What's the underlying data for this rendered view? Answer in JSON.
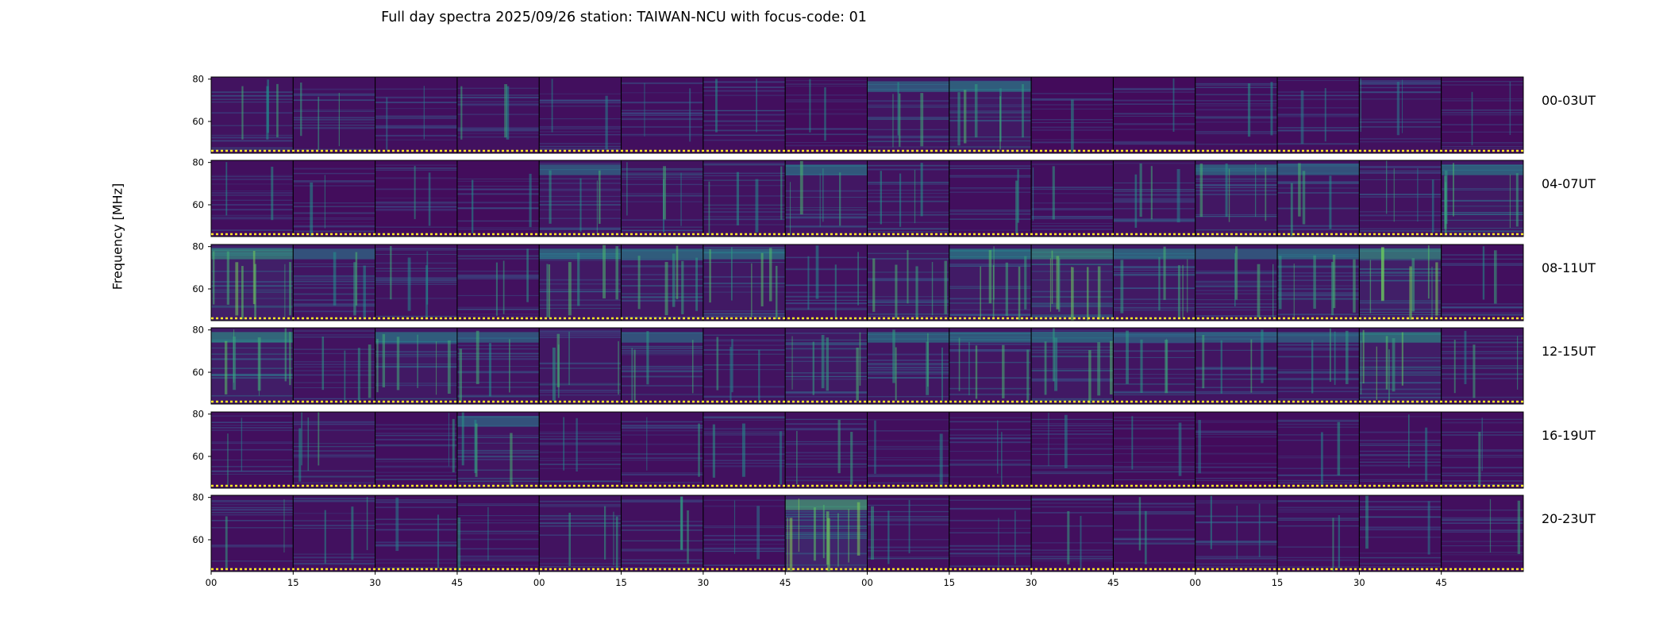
{
  "title": "Full day spectra 2025/09/26 station: TAIWAN-NCU with focus-code: 01",
  "colors": {
    "background": "#440154",
    "mid": "#3b528b",
    "teal": "#21918c",
    "green": "#5ec962",
    "yellow": "#fde725"
  },
  "chart_data": {
    "type": "heatmap",
    "title": "Full day spectra 2025/09/26 station: TAIWAN-NCU with focus-code: 01",
    "ylabel": "Frequency [MHz]",
    "xlabel": "",
    "ylim": [
      45,
      81
    ],
    "yticks": [
      "80",
      "60"
    ],
    "xticks": [
      "00",
      "15",
      "30",
      "45",
      "00",
      "15",
      "30",
      "45",
      "00",
      "15",
      "30",
      "45",
      "00",
      "15",
      "30",
      "45"
    ],
    "colormap": "viridis",
    "panels_per_row": 16,
    "panel_minutes": 15,
    "rows": [
      {
        "label": "00-03UT",
        "intensity": [
          0.3,
          0.25,
          0.2,
          0.25,
          0.2,
          0.2,
          0.2,
          0.15,
          0.35,
          0.45,
          0.1,
          0.1,
          0.2,
          0.2,
          0.25,
          0.15
        ]
      },
      {
        "label": "04-07UT",
        "intensity": [
          0.2,
          0.15,
          0.15,
          0.15,
          0.35,
          0.3,
          0.3,
          0.4,
          0.3,
          0.2,
          0.2,
          0.3,
          0.4,
          0.35,
          0.3,
          0.45
        ]
      },
      {
        "label": "08-11UT",
        "intensity": [
          0.6,
          0.35,
          0.3,
          0.25,
          0.45,
          0.45,
          0.45,
          0.3,
          0.45,
          0.5,
          0.6,
          0.45,
          0.35,
          0.45,
          0.6,
          0.2
        ]
      },
      {
        "label": "12-15UT",
        "intensity": [
          0.55,
          0.3,
          0.45,
          0.35,
          0.4,
          0.35,
          0.3,
          0.45,
          0.4,
          0.4,
          0.45,
          0.35,
          0.35,
          0.35,
          0.55,
          0.3
        ]
      },
      {
        "label": "16-19UT",
        "intensity": [
          0.2,
          0.3,
          0.2,
          0.35,
          0.2,
          0.2,
          0.25,
          0.25,
          0.2,
          0.2,
          0.2,
          0.15,
          0.1,
          0.2,
          0.2,
          0.2
        ]
      },
      {
        "label": "20-23UT",
        "intensity": [
          0.2,
          0.25,
          0.2,
          0.2,
          0.3,
          0.25,
          0.2,
          0.75,
          0.25,
          0.2,
          0.2,
          0.2,
          0.25,
          0.2,
          0.2,
          0.2
        ]
      }
    ]
  }
}
